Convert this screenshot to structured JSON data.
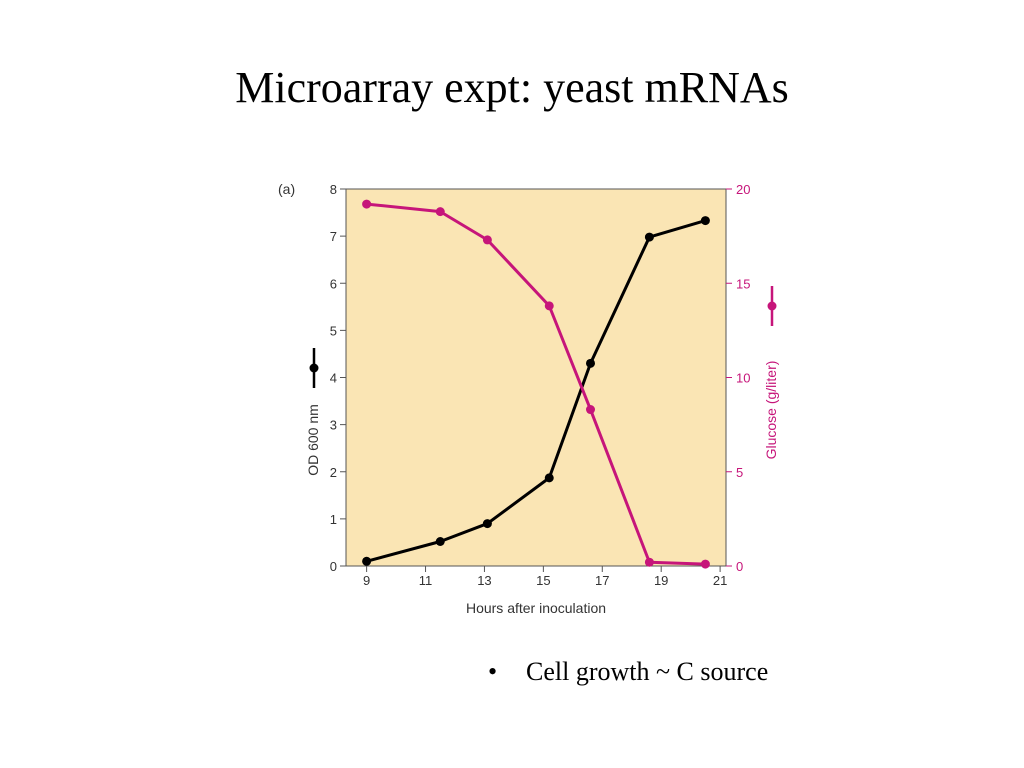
{
  "slide": {
    "title": "Microarray expt:  yeast mRNAs",
    "bullets": [
      {
        "marker": "•",
        "text": "Cell growth ~ C source"
      }
    ]
  },
  "chart_data": {
    "type": "line",
    "panel_label": "(a)",
    "xlabel": "Hours after inoculation",
    "xlim": [
      8.3,
      21.2
    ],
    "xticks": [
      9,
      11,
      13,
      15,
      17,
      19,
      21
    ],
    "left_axis": {
      "label": "OD 600 nm",
      "ylim": [
        0,
        8
      ],
      "ticks": [
        0,
        1,
        2,
        3,
        4,
        5,
        6,
        7,
        8
      ]
    },
    "right_axis": {
      "label": "Glucose (g/liter)",
      "ylim": [
        0,
        20
      ],
      "ticks": [
        0,
        5,
        10,
        15,
        20
      ]
    },
    "series": [
      {
        "axis": "left",
        "color": "#000000",
        "x": [
          9,
          11.5,
          13.1,
          15.2,
          16.6,
          18.6,
          20.5
        ],
        "y": [
          0.1,
          0.52,
          0.9,
          1.87,
          4.3,
          6.98,
          7.33
        ]
      },
      {
        "axis": "right",
        "color": "#c6157a",
        "x": [
          9,
          11.5,
          13.1,
          15.2,
          16.6,
          18.6,
          20.5
        ],
        "y": [
          19.2,
          18.8,
          17.3,
          13.8,
          8.3,
          0.2,
          0.1
        ]
      }
    ],
    "background_color": "#fae5b4",
    "grid": false
  }
}
